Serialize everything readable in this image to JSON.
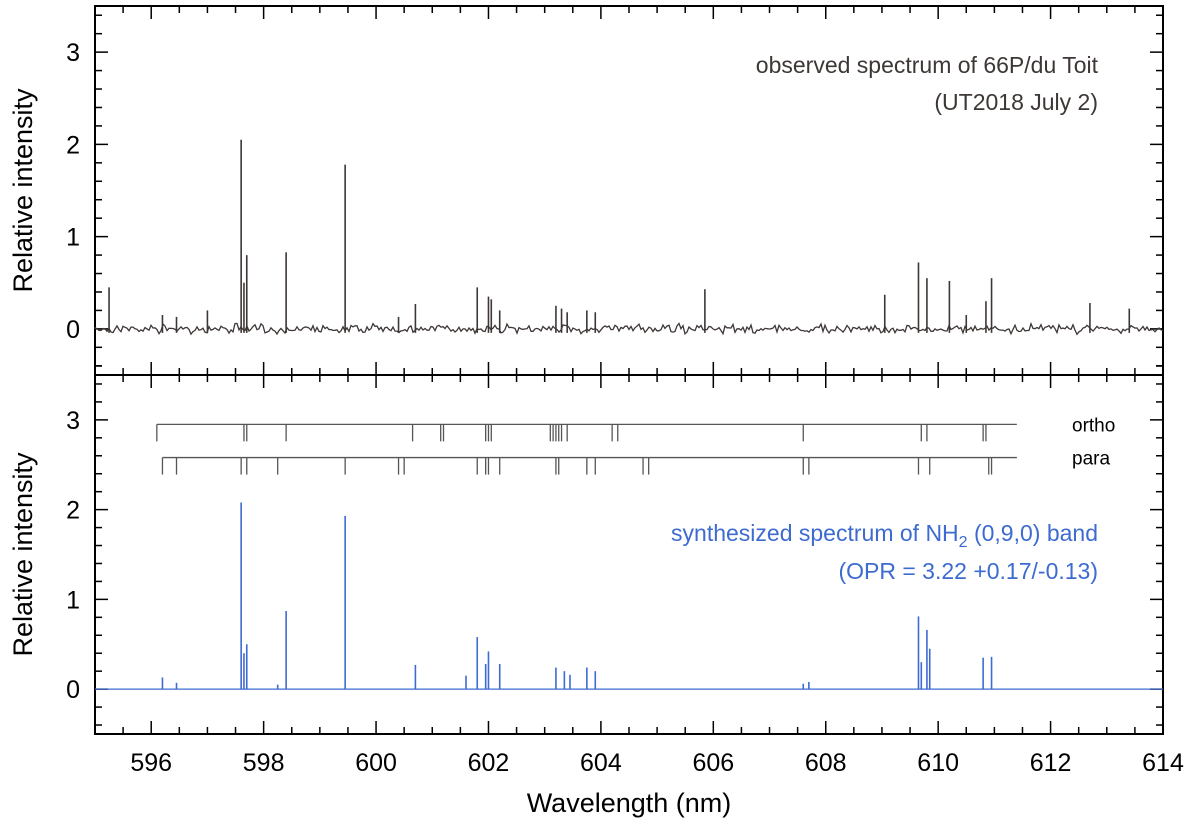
{
  "chart_data": [
    {
      "type": "line",
      "panel": "top",
      "ylabel": "Relative intensity",
      "xlim": [
        595,
        614
      ],
      "ylim": [
        -0.5,
        3.5
      ],
      "yticks": [
        0,
        1,
        2,
        3
      ],
      "annotation": [
        "observed spectrum of 66P/du Toit",
        "(UT2018 July 2)"
      ],
      "annotation_color": "#3d3735",
      "line_color": "#3d3735",
      "series": [
        {
          "lines": [
            {
              "x": 595.25,
              "y": 0.45
            },
            {
              "x": 596.2,
              "y": 0.15
            },
            {
              "x": 596.45,
              "y": 0.13
            },
            {
              "x": 597.0,
              "y": 0.2
            },
            {
              "x": 597.6,
              "y": 2.05
            },
            {
              "x": 597.65,
              "y": 0.5
            },
            {
              "x": 597.7,
              "y": 0.8
            },
            {
              "x": 598.4,
              "y": 0.83
            },
            {
              "x": 599.45,
              "y": 1.78
            },
            {
              "x": 600.4,
              "y": 0.13
            },
            {
              "x": 600.7,
              "y": 0.27
            },
            {
              "x": 601.8,
              "y": 0.45
            },
            {
              "x": 602.0,
              "y": 0.35
            },
            {
              "x": 602.05,
              "y": 0.32
            },
            {
              "x": 602.2,
              "y": 0.2
            },
            {
              "x": 603.2,
              "y": 0.25
            },
            {
              "x": 603.3,
              "y": 0.22
            },
            {
              "x": 603.4,
              "y": 0.18
            },
            {
              "x": 603.75,
              "y": 0.2
            },
            {
              "x": 603.9,
              "y": 0.18
            },
            {
              "x": 605.85,
              "y": 0.43
            },
            {
              "x": 609.05,
              "y": 0.37
            },
            {
              "x": 609.65,
              "y": 0.72
            },
            {
              "x": 609.8,
              "y": 0.55
            },
            {
              "x": 610.2,
              "y": 0.52
            },
            {
              "x": 610.5,
              "y": 0.15
            },
            {
              "x": 610.85,
              "y": 0.3
            },
            {
              "x": 610.95,
              "y": 0.55
            },
            {
              "x": 612.7,
              "y": 0.28
            },
            {
              "x": 613.4,
              "y": 0.22
            }
          ]
        }
      ]
    },
    {
      "type": "line",
      "panel": "bottom",
      "xlabel": "Wavelength (nm)",
      "ylabel": "Relative intensity",
      "xlim": [
        595,
        614
      ],
      "ylim": [
        -0.5,
        3.5
      ],
      "xticks": [
        596,
        598,
        600,
        602,
        604,
        606,
        608,
        610,
        612,
        614
      ],
      "yticks": [
        0,
        1,
        2,
        3
      ],
      "annotation": [
        "synthesized spectrum of NH",
        "2",
        " (0,9,0) band",
        "(OPR = 3.22 +0.17/-0.13)"
      ],
      "annotation_color": "#3d6bd0",
      "line_color": "#3d6bd0",
      "series": [
        {
          "lines": [
            {
              "x": 596.2,
              "y": 0.13
            },
            {
              "x": 596.45,
              "y": 0.07
            },
            {
              "x": 597.6,
              "y": 2.08
            },
            {
              "x": 597.65,
              "y": 0.4
            },
            {
              "x": 597.7,
              "y": 0.5
            },
            {
              "x": 598.25,
              "y": 0.05
            },
            {
              "x": 598.4,
              "y": 0.87
            },
            {
              "x": 599.45,
              "y": 1.93
            },
            {
              "x": 600.7,
              "y": 0.27
            },
            {
              "x": 601.6,
              "y": 0.15
            },
            {
              "x": 601.8,
              "y": 0.58
            },
            {
              "x": 601.95,
              "y": 0.28
            },
            {
              "x": 602.0,
              "y": 0.42
            },
            {
              "x": 602.2,
              "y": 0.28
            },
            {
              "x": 603.2,
              "y": 0.24
            },
            {
              "x": 603.35,
              "y": 0.2
            },
            {
              "x": 603.45,
              "y": 0.16
            },
            {
              "x": 603.75,
              "y": 0.24
            },
            {
              "x": 603.9,
              "y": 0.2
            },
            {
              "x": 607.6,
              "y": 0.06
            },
            {
              "x": 607.7,
              "y": 0.08
            },
            {
              "x": 609.65,
              "y": 0.81
            },
            {
              "x": 609.7,
              "y": 0.3
            },
            {
              "x": 609.8,
              "y": 0.66
            },
            {
              "x": 609.85,
              "y": 0.45
            },
            {
              "x": 610.8,
              "y": 0.35
            },
            {
              "x": 610.95,
              "y": 0.36
            }
          ]
        }
      ],
      "line_markers": [
        {
          "name": "ortho",
          "level": 2.95,
          "x_start": 596.1,
          "x_end": 611.4,
          "positions": [
            596.1,
            597.65,
            597.7,
            598.4,
            600.65,
            601.15,
            601.2,
            601.95,
            602.0,
            602.05,
            603.1,
            603.15,
            603.2,
            603.25,
            603.3,
            603.4,
            604.2,
            604.3,
            607.6,
            609.7,
            609.8,
            610.8,
            610.85
          ]
        },
        {
          "name": "para",
          "level": 2.58,
          "x_start": 596.2,
          "x_end": 611.4,
          "positions": [
            596.2,
            596.45,
            597.6,
            597.7,
            598.25,
            599.45,
            600.4,
            600.5,
            601.8,
            601.95,
            602.0,
            602.2,
            603.2,
            603.25,
            603.75,
            603.9,
            604.75,
            604.85,
            607.6,
            607.7,
            609.65,
            609.85,
            610.9,
            610.95
          ]
        }
      ]
    }
  ]
}
